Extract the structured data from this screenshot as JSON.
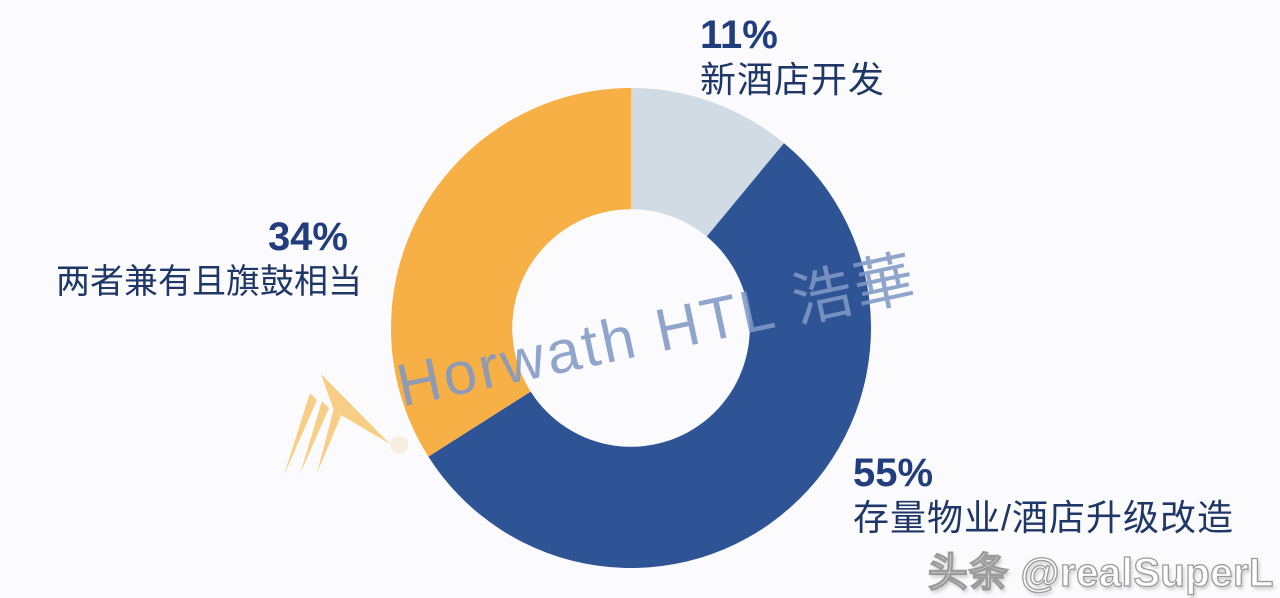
{
  "chart_data": {
    "type": "pie",
    "donut": true,
    "hole_ratio": 0.495,
    "start_angle_deg": 0,
    "direction": "clockwise",
    "title": "",
    "legend_position": "callout-labels",
    "slices": [
      {
        "label": "新酒店开发",
        "value": 11,
        "pct_label": "11%",
        "color": "#D1DBE3"
      },
      {
        "label": "存量物业/酒店升级改造",
        "value": 55,
        "pct_label": "55%",
        "color": "#2F5496"
      },
      {
        "label": "两者兼有且旗鼓相当",
        "value": 34,
        "pct_label": "34%",
        "color": "#F6B045"
      }
    ]
  },
  "watermarks": {
    "brand": "Horwath HTL 浩華",
    "credit": "头条 @realSuperL"
  },
  "icons": {
    "brand_logo": "horwath-mountain-mark"
  },
  "colors": {
    "background": "#FBFAFC",
    "label_number": "#213D7D",
    "label_text": "#1F3766",
    "watermark_blue": "rgba(128,152,196,0.87)",
    "logo_orange": "#F8C876",
    "credit_fill": "#FEFEFE",
    "credit_outline": "#9B9B9B"
  }
}
